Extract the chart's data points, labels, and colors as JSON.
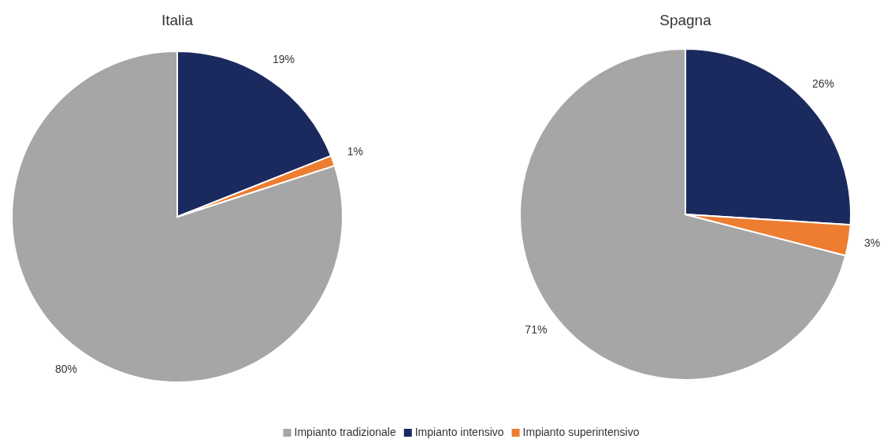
{
  "chart_data": [
    {
      "type": "pie",
      "title": "Italia",
      "categories": [
        "Impianto tradizionale",
        "Impianto intensivo",
        "Impianto superintensivo"
      ],
      "values": [
        80,
        19,
        1
      ],
      "value_labels": [
        "80%",
        "19%",
        "1%"
      ],
      "colors": [
        "#a6a6a6",
        "#1b2a5e",
        "#ed7d31"
      ],
      "legend": "bottom"
    },
    {
      "type": "pie",
      "title": "Spagna",
      "categories": [
        null,
        null,
        null
      ],
      "values": [
        71,
        26,
        3
      ],
      "value_labels": [
        "71%",
        "26%",
        "3%"
      ],
      "colors": [
        "#a6a6a6",
        "#1b2a5e",
        "#ed7d31"
      ]
    }
  ]
}
